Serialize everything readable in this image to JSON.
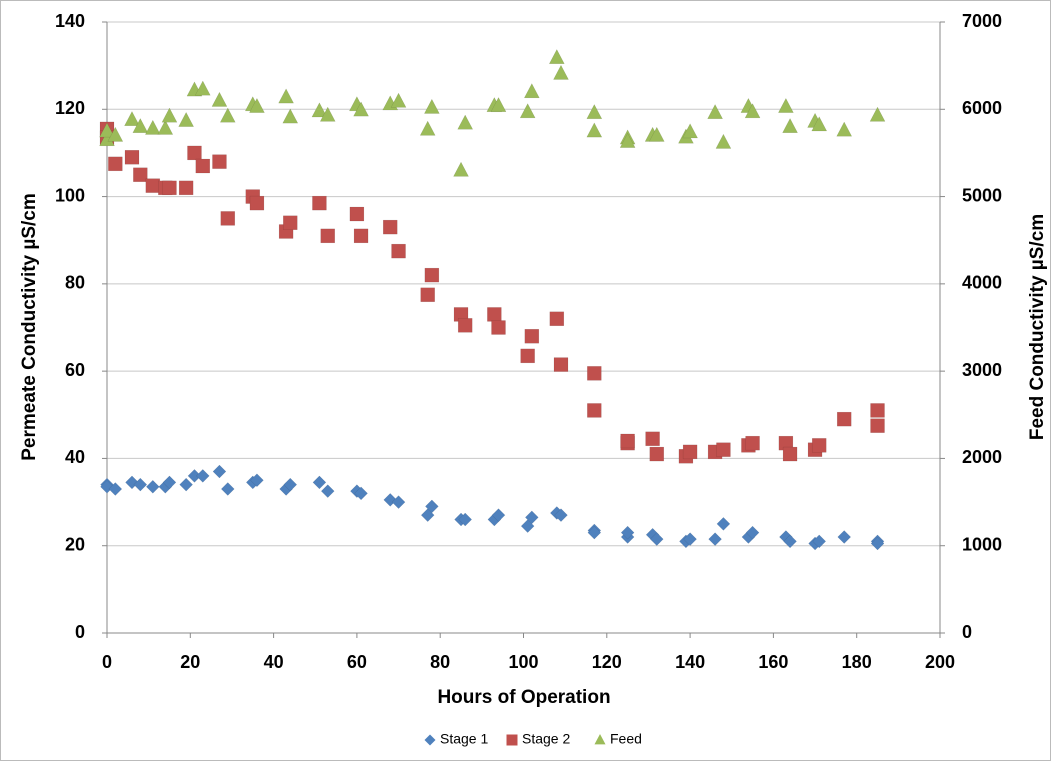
{
  "chart_data": {
    "type": "scatter",
    "xlabel": "Hours of Operation",
    "ylabel": "Permeate Conductivity µS/cm",
    "y2label": "Feed Conductivity µS/cm",
    "xlim": [
      0,
      200
    ],
    "xticks": [
      0,
      20,
      40,
      60,
      80,
      100,
      120,
      140,
      160,
      180,
      200
    ],
    "ylim": [
      0,
      140
    ],
    "yticks": [
      0,
      20,
      40,
      60,
      80,
      100,
      120,
      140
    ],
    "y2lim": [
      0,
      7000
    ],
    "y2ticks": [
      0,
      1000,
      2000,
      3000,
      4000,
      5000,
      6000,
      7000
    ],
    "grid": true,
    "legend": "bottom",
    "series": [
      {
        "name": "Stage 1",
        "color": "#4f81bd",
        "marker": "diamond",
        "x": [
          0,
          0,
          2,
          6,
          8,
          11,
          14,
          15,
          19,
          21,
          23,
          27,
          29,
          35,
          36,
          43,
          44,
          51,
          53,
          60,
          61,
          68,
          70,
          77,
          78,
          85,
          86,
          93,
          94,
          101,
          102,
          108,
          109,
          117,
          117,
          125,
          125,
          131,
          132,
          139,
          140,
          146,
          148,
          154,
          155,
          163,
          164,
          170,
          171,
          177,
          185,
          185
        ],
        "values": [
          34,
          33.5,
          33,
          34.5,
          34,
          33.5,
          33.5,
          34.5,
          34,
          36,
          36,
          37,
          33,
          34.5,
          35,
          33,
          34,
          34.5,
          32.5,
          32.5,
          32,
          30.5,
          30,
          27,
          29,
          26,
          26,
          26,
          27,
          24.5,
          26.5,
          27.5,
          27,
          23.5,
          23,
          22,
          23,
          22.5,
          21.5,
          21,
          21.5,
          21.5,
          25,
          22,
          23,
          22,
          21,
          20.5,
          21,
          22,
          21,
          20.5
        ]
      },
      {
        "name": "Stage 2",
        "color": "#c0504d",
        "marker": "square",
        "x": [
          0,
          0,
          2,
          6,
          8,
          11,
          14,
          15,
          19,
          21,
          23,
          27,
          29,
          35,
          36,
          43,
          44,
          51,
          53,
          60,
          61,
          68,
          70,
          77,
          78,
          85,
          86,
          93,
          94,
          101,
          102,
          108,
          109,
          117,
          117,
          125,
          125,
          131,
          132,
          139,
          140,
          146,
          148,
          154,
          155,
          163,
          164,
          170,
          171,
          177,
          185,
          185
        ],
        "values": [
          115.5,
          113.5,
          107.5,
          109,
          105,
          102.5,
          102,
          102,
          102,
          110,
          107,
          108,
          95,
          100,
          98.5,
          92,
          94,
          98.5,
          91,
          96,
          91,
          93,
          87.5,
          77.5,
          82,
          73,
          70.5,
          73,
          70,
          63.5,
          68,
          72,
          61.5,
          59.5,
          51,
          43.5,
          44,
          44.5,
          41,
          40.5,
          41.5,
          41.5,
          42,
          43,
          43.5,
          43.5,
          41,
          42,
          43,
          49,
          51,
          47.5
        ]
      },
      {
        "name": "Feed",
        "color": "#9bbb59",
        "marker": "triangle",
        "axis": "y2",
        "x": [
          0,
          0,
          2,
          6,
          8,
          11,
          14,
          15,
          19,
          21,
          23,
          27,
          29,
          35,
          36,
          43,
          44,
          51,
          53,
          60,
          61,
          68,
          70,
          77,
          78,
          85,
          86,
          93,
          94,
          101,
          102,
          108,
          109,
          117,
          117,
          125,
          125,
          131,
          132,
          139,
          140,
          146,
          148,
          154,
          155,
          163,
          164,
          170,
          171,
          177,
          185
        ],
        "values": [
          5650,
          5750,
          5700,
          5880,
          5800,
          5780,
          5780,
          5920,
          5870,
          6220,
          6230,
          6100,
          5920,
          6050,
          6030,
          6140,
          5910,
          5980,
          5930,
          6050,
          5990,
          6060,
          6090,
          5770,
          6020,
          5300,
          5840,
          6040,
          6040,
          5970,
          6200,
          6590,
          6410,
          5960,
          5750,
          5670,
          5630,
          5700,
          5700,
          5680,
          5740,
          5960,
          5620,
          6030,
          5970,
          6030,
          5800,
          5860,
          5820,
          5760,
          5930
        ]
      }
    ]
  }
}
